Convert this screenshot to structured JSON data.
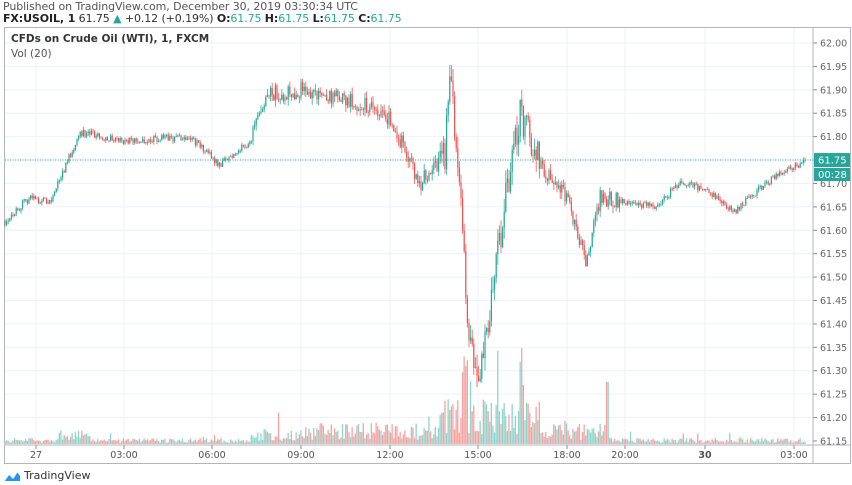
{
  "header": {
    "published": "Published on TradingView.com, December 30, 2019 03:30:34 UTC",
    "symbol": "FX:USOIL, 1",
    "last": "61.75",
    "change_arrow": "▲",
    "change": "+0.12 (+0.19%)",
    "o_label": "O:",
    "o_value": "61.75",
    "h_label": "H:",
    "h_value": "61.75",
    "l_label": "L:",
    "l_value": "61.75",
    "c_label": "C:",
    "c_value": "61.75"
  },
  "legend": {
    "title": "CFDs on Crude Oil (WTI), 1, FXCM",
    "volume": "Vol (20)"
  },
  "price_axis": {
    "current_price_label": "61.75",
    "countdown_label": "00:28"
  },
  "brand": {
    "name": "TradingView"
  },
  "colors": {
    "up": "#26a69a",
    "down": "#ef5350",
    "up_volume": "#8fd4cc",
    "down_volume": "#f5a3a1",
    "grid": "#eef2f6",
    "axis_border": "#b2b5be",
    "price_line": "#26a69a"
  },
  "chart_data": {
    "type": "candlestick",
    "title": "CFDs on Crude Oil (WTI), 1, FXCM",
    "symbol": "FX:USOIL",
    "interval": "1 minute",
    "xlabel": "",
    "ylabel": "",
    "ylim": [
      61.15,
      62.02
    ],
    "y_ticks": [
      "62.00",
      "61.95",
      "61.90",
      "61.85",
      "61.80",
      "61.75",
      "61.70",
      "61.65",
      "61.60",
      "61.55",
      "61.50",
      "61.45",
      "61.40",
      "61.35",
      "61.30",
      "61.25",
      "61.20",
      "61.15"
    ],
    "x_ticks": [
      "27",
      "03:00",
      "06:00",
      "09:00",
      "12:00",
      "15:00",
      "18:00",
      "20:00",
      "30",
      "03:00"
    ],
    "grid": true,
    "legend_position": "top-left",
    "current_price": 61.75,
    "price_path_keypoints": [
      {
        "t": "26 23:00",
        "price": 61.62
      },
      {
        "t": "27 00:00",
        "price": 61.67
      },
      {
        "t": "27 01:00",
        "price": 61.66
      },
      {
        "t": "27 02:00",
        "price": 61.81
      },
      {
        "t": "27 03:00",
        "price": 61.79
      },
      {
        "t": "27 05:00",
        "price": 61.8
      },
      {
        "t": "27 06:00",
        "price": 61.74
      },
      {
        "t": "27 07:00",
        "price": 61.79
      },
      {
        "t": "27 08:00",
        "price": 61.89
      },
      {
        "t": "27 09:00",
        "price": 61.9
      },
      {
        "t": "27 11:00",
        "price": 61.87
      },
      {
        "t": "27 12:00",
        "price": 61.84
      },
      {
        "t": "27 13:00",
        "price": 61.7
      },
      {
        "t": "27 14:00",
        "price": 61.76
      },
      {
        "t": "27 14:05",
        "price": 61.94
      },
      {
        "t": "27 14:30",
        "price": 61.76
      },
      {
        "t": "27 14:50",
        "price": 61.4
      },
      {
        "t": "27 15:00",
        "price": 61.25
      },
      {
        "t": "27 15:30",
        "price": 61.47
      },
      {
        "t": "27 16:00",
        "price": 61.7
      },
      {
        "t": "27 16:20",
        "price": 61.85
      },
      {
        "t": "27 17:00",
        "price": 61.72
      },
      {
        "t": "27 18:00",
        "price": 61.67
      },
      {
        "t": "27 18:30",
        "price": 61.53
      },
      {
        "t": "27 19:00",
        "price": 61.67
      },
      {
        "t": "27 20:00",
        "price": 61.66
      },
      {
        "t": "27 21:00",
        "price": 61.65
      },
      {
        "t": "27 22:00",
        "price": 61.7
      },
      {
        "t": "30 00:00",
        "price": 61.69
      },
      {
        "t": "30 01:00",
        "price": 61.64
      },
      {
        "t": "30 02:00",
        "price": 61.7
      },
      {
        "t": "30 03:30",
        "price": 61.75
      }
    ],
    "volume_note": "Volume low (~61.15-61.17 scale equivalent) early session, peaks around 14:00-16:30, spike near 19:30, then low."
  }
}
